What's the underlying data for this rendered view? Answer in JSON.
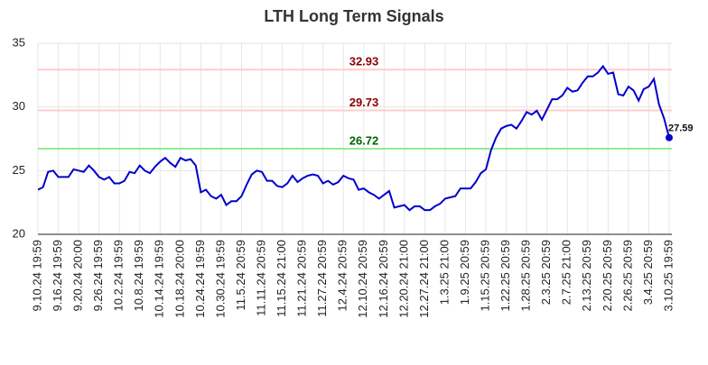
{
  "chart_data": {
    "type": "line",
    "title": "LTH Long Term Signals",
    "categories": [
      "9.10.24 19:59",
      null,
      null,
      null,
      "9.16.24 19:59",
      null,
      null,
      null,
      "9.20.24 20:00",
      null,
      null,
      null,
      "9.26.24 19:59",
      null,
      null,
      null,
      "10.2.24 19:59",
      null,
      null,
      null,
      "10.8.24 19:59",
      null,
      null,
      null,
      "10.14.24 19:59",
      null,
      null,
      null,
      "10.18.24 20:00",
      null,
      null,
      null,
      "10.24.24 19:59",
      null,
      null,
      null,
      "10.30.24 19:59",
      null,
      null,
      null,
      "11.5.24 20:59",
      null,
      null,
      null,
      "11.11.24 20:59",
      null,
      null,
      null,
      "11.15.24 21:00",
      null,
      null,
      null,
      "11.21.24 20:59",
      null,
      null,
      null,
      "11.27.24 20:59",
      null,
      null,
      null,
      "12.4.24 20:59",
      null,
      null,
      null,
      "12.10.24 20:59",
      null,
      null,
      null,
      "12.16.24 20:59",
      null,
      null,
      null,
      "12.20.24 21:00",
      null,
      null,
      null,
      "12.27.24 21:00",
      null,
      null,
      null,
      "1.3.25 21:00",
      null,
      null,
      null,
      "1.9.25 20:59",
      null,
      null,
      null,
      "1.15.25 20:59",
      null,
      null,
      null,
      "1.22.25 20:59",
      null,
      null,
      null,
      "1.28.25 20:59",
      null,
      null,
      null,
      "2.3.25 20:59",
      null,
      null,
      null,
      "2.7.25 21:00",
      null,
      null,
      null,
      "2.13.25 20:59",
      null,
      null,
      null,
      "2.20.25 20:59",
      null,
      null,
      null,
      "2.26.25 20:59",
      null,
      null,
      null,
      "3.4.25 20:59",
      null,
      null,
      null,
      "3.10.25 19:59"
    ],
    "series": [
      {
        "color": "#0000cc",
        "values": [
          23.5,
          23.7,
          24.9,
          25.0,
          24.5,
          24.5,
          24.5,
          25.1,
          25.0,
          24.9,
          25.4,
          25.0,
          24.5,
          24.3,
          24.5,
          24.0,
          24.0,
          24.2,
          24.9,
          24.8,
          25.4,
          25.0,
          24.8,
          25.3,
          25.7,
          26.0,
          25.6,
          25.3,
          26.0,
          25.8,
          25.9,
          25.4,
          23.3,
          23.5,
          23.0,
          22.8,
          23.1,
          22.3,
          22.6,
          22.6,
          23.0,
          23.9,
          24.7,
          25.0,
          24.9,
          24.2,
          24.2,
          23.8,
          23.7,
          24.0,
          24.6,
          24.1,
          24.4,
          24.6,
          24.7,
          24.6,
          24.0,
          24.2,
          23.9,
          24.1,
          24.6,
          24.4,
          24.3,
          23.5,
          23.6,
          23.3,
          23.1,
          22.8,
          23.1,
          23.4,
          22.1,
          22.2,
          22.3,
          21.9,
          22.2,
          22.2,
          21.9,
          21.9,
          22.2,
          22.4,
          22.8,
          22.9,
          23.0,
          23.6,
          23.6,
          23.6,
          24.1,
          24.8,
          25.1,
          26.6,
          27.6,
          28.3,
          28.5,
          28.6,
          28.3,
          28.9,
          29.6,
          29.4,
          29.7,
          29.0,
          29.8,
          30.6,
          30.6,
          30.9,
          31.5,
          31.2,
          31.3,
          31.9,
          32.4,
          32.4,
          32.7,
          33.2,
          32.6,
          32.7,
          31.0,
          30.9,
          31.6,
          31.3,
          30.5,
          31.4,
          31.6,
          32.2,
          30.2,
          29.1,
          27.59
        ]
      }
    ],
    "signals": [
      {
        "value": 32.93,
        "color": "#ffcccc",
        "label_color": "#8b0000"
      },
      {
        "value": 29.73,
        "color": "#ffcccc",
        "label_color": "#8b0000"
      },
      {
        "value": 26.72,
        "color": "#90ee90",
        "label_color": "#006400"
      }
    ],
    "ylim": [
      20,
      35
    ],
    "yticks": [
      20,
      25,
      30,
      35
    ],
    "grid": true
  }
}
